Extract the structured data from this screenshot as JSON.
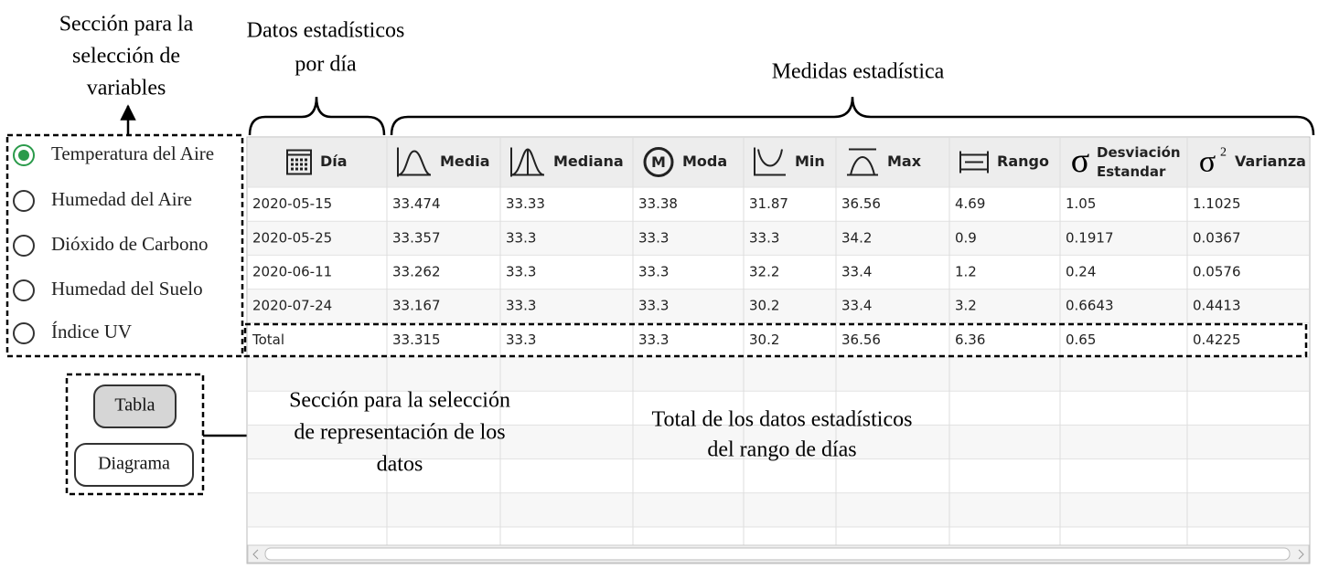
{
  "annotations": {
    "variables_section": [
      "Sección para la",
      "selección de",
      "variables"
    ],
    "daily_stats": [
      "Datos estadísticos",
      "por día"
    ],
    "measures": [
      "Medidas estadística"
    ],
    "representation_section": [
      "Sección para la selección",
      "de representación de los",
      "datos"
    ],
    "total_note": [
      "Total de los datos estadísticos",
      "del rango de días"
    ]
  },
  "radio_options": [
    "Temperatura del Aire",
    "Humedad del Aire",
    "Dióxido de Carbono",
    "Humedad del Suelo",
    "Índice UV"
  ],
  "selected_option": 0,
  "buttons": [
    "Tabla",
    "Diagrama"
  ],
  "table": {
    "headers": [
      [
        "Día"
      ],
      [
        "Media"
      ],
      [
        "Mediana"
      ],
      [
        "Moda"
      ],
      [
        "Min"
      ],
      [
        "Max"
      ],
      [
        "Rango"
      ],
      [
        "Desviación",
        "Estandar"
      ],
      [
        "Varianza"
      ]
    ],
    "rows": [
      [
        "2020-05-15",
        "33.474",
        "33.33",
        "33.38",
        "31.87",
        "36.56",
        "4.69",
        "1.05",
        "1.1025"
      ],
      [
        "2020-05-25",
        "33.357",
        "33.3",
        "33.3",
        "33.3",
        "34.2",
        "0.9",
        "0.1917",
        "0.0367"
      ],
      [
        "2020-06-11",
        "33.262",
        "33.3",
        "33.3",
        "32.2",
        "33.4",
        "1.2",
        "0.24",
        "0.0576"
      ],
      [
        "2020-07-24",
        "33.167",
        "33.3",
        "33.3",
        "30.2",
        "33.4",
        "3.2",
        "0.6643",
        "0.4413"
      ]
    ],
    "total": [
      "Total",
      "33.315",
      "33.3",
      "33.3",
      "30.2",
      "36.56",
      "6.36",
      "0.65",
      "0.4225"
    ]
  }
}
